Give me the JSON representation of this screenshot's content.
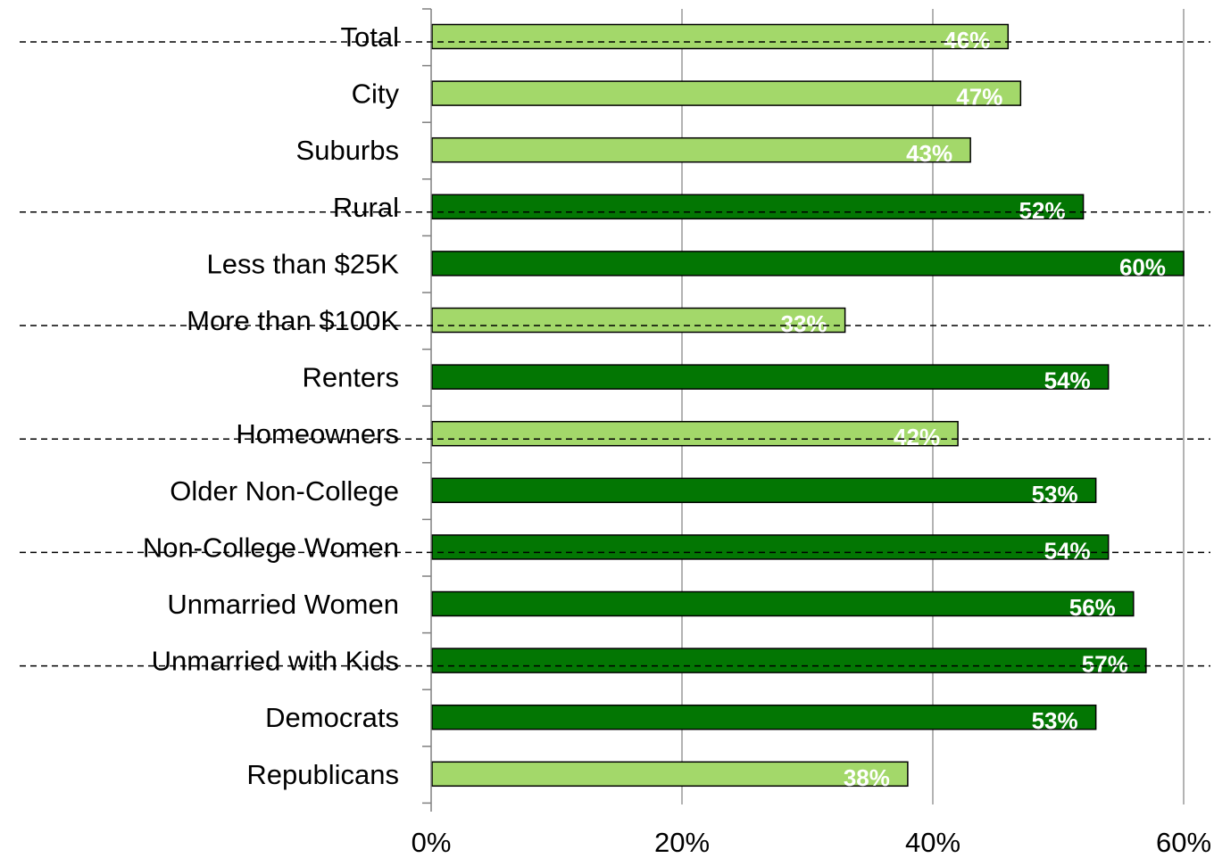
{
  "chart_data": {
    "type": "bar",
    "orientation": "horizontal",
    "title": "",
    "xlabel": "",
    "ylabel": "",
    "xlim": [
      0,
      60
    ],
    "x_ticks": [
      0,
      20,
      40,
      60
    ],
    "x_tick_labels": [
      "0%",
      "20%",
      "40%",
      "60%"
    ],
    "grid": "vertical",
    "legend": "none",
    "categories": [
      "Total",
      "City",
      "Suburbs",
      "Rural",
      "Less than $25K",
      "More than $100K",
      "Renters",
      "Homeowners",
      "Older Non-College",
      "Non-College Women",
      "Unmarried Women",
      "Unmarried with Kids",
      "Democrats",
      "Republicans"
    ],
    "values": [
      46,
      47,
      43,
      52,
      60,
      33,
      54,
      42,
      53,
      54,
      56,
      57,
      53,
      38
    ],
    "data_labels": [
      "46%",
      "47%",
      "43%",
      "52%",
      "60%",
      "33%",
      "54%",
      "42%",
      "53%",
      "54%",
      "56%",
      "57%",
      "53%",
      "38%"
    ],
    "bar_colors": [
      "#a3d86a",
      "#a3d86a",
      "#a3d86a",
      "#037603",
      "#037603",
      "#a3d86a",
      "#037603",
      "#a3d86a",
      "#037603",
      "#037603",
      "#037603",
      "#037603",
      "#037603",
      "#a3d86a"
    ],
    "group_separators_after": [
      "Total",
      "Rural",
      "More than $100K",
      "Homeowners",
      "Non-College Women",
      "Unmarried with Kids"
    ]
  },
  "colors": {
    "light_green": "#a3d86a",
    "dark_green": "#037603",
    "gridline": "#9a9a9a",
    "axis": "#808080"
  }
}
